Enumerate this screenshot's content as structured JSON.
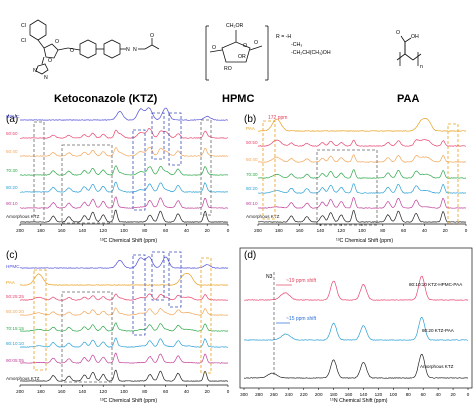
{
  "structures": [
    {
      "name": "Ketoconazole (KTZ)",
      "atoms": [
        "Cl",
        "Cl",
        "N",
        "N",
        "N",
        "O",
        "O",
        "O",
        "N",
        "O"
      ]
    },
    {
      "name": "HPMC",
      "atoms": [
        "CH₂OR",
        "O",
        "OR",
        "RO",
        "O",
        "O"
      ],
      "r_groups": [
        "R = -H",
        "-CH₃",
        "-CH₂CH(CH₃)OH"
      ]
    },
    {
      "name": "PAA",
      "atoms": [
        "O",
        "OH",
        "n"
      ]
    }
  ],
  "colors": {
    "hpmc": "#4f4fd8",
    "paa": "#e8a020",
    "r5050": "#e8456e",
    "r6040": "#f2a65a",
    "r7030": "#2ea84a",
    "r8020": "#2a9fd6",
    "r9010": "#c0409a",
    "amorphous": "#222222",
    "box_grey": "#666666",
    "box_blue": "#3b4fb8",
    "box_orange": "#e8a020",
    "ppm_red": "#e0455e"
  },
  "chart_data": [
    {
      "panel": "(a)",
      "type": "line",
      "xlabel": "¹³C Chemical Shift (ppm)",
      "xlim": [
        200,
        0
      ],
      "xticks": [
        200,
        180,
        160,
        140,
        120,
        100,
        80,
        60,
        40,
        20,
        0
      ],
      "series": [
        {
          "name": "HPMC",
          "color": "#4f4fd8"
        },
        {
          "name": "50:50",
          "color": "#e8456e"
        },
        {
          "name": "60:40",
          "color": "#f2a65a"
        },
        {
          "name": "70:30",
          "color": "#2ea84a"
        },
        {
          "name": "80:20",
          "color": "#2a9fd6"
        },
        {
          "name": "90:10",
          "color": "#c0409a"
        },
        {
          "name": "Amorphous KTZ",
          "color": "#222222"
        }
      ]
    },
    {
      "panel": "(b)",
      "type": "line",
      "xlabel": "¹³C Chemical Shift (ppm)",
      "xlim": [
        200,
        0
      ],
      "xticks": [
        200,
        180,
        160,
        140,
        120,
        100,
        80,
        60,
        40,
        20,
        0
      ],
      "annotation": "172 ppm",
      "series": [
        {
          "name": "PAA",
          "color": "#e8a020"
        },
        {
          "name": "50:50",
          "color": "#e8456e"
        },
        {
          "name": "60:40",
          "color": "#f2a65a"
        },
        {
          "name": "70:30",
          "color": "#2ea84a"
        },
        {
          "name": "80:20",
          "color": "#2a9fd6"
        },
        {
          "name": "90:10",
          "color": "#c0409a"
        },
        {
          "name": "Amorphous KTZ",
          "color": "#222222"
        }
      ]
    },
    {
      "panel": "(c)",
      "type": "line",
      "xlabel": "¹³C Chemical Shift (ppm)",
      "xlim": [
        200,
        0
      ],
      "xticks": [
        200,
        180,
        160,
        140,
        120,
        100,
        80,
        60,
        40,
        20,
        0
      ],
      "series": [
        {
          "name": "HPMC",
          "color": "#4f4fd8"
        },
        {
          "name": "PAA",
          "color": "#e8a020"
        },
        {
          "name": "50:25:25",
          "color": "#e8456e"
        },
        {
          "name": "60:20:20",
          "color": "#f2a65a"
        },
        {
          "name": "70:15:15",
          "color": "#2ea84a"
        },
        {
          "name": "80:10:10",
          "color": "#2a9fd6"
        },
        {
          "name": "90:05:05",
          "color": "#c0409a"
        },
        {
          "name": "Amorphous KTZ",
          "color": "#222222"
        }
      ]
    },
    {
      "panel": "(d)",
      "type": "line",
      "xlabel": "¹⁵N Chemical Shift (ppm)",
      "xlim": [
        300,
        0
      ],
      "xticks": [
        300,
        280,
        260,
        240,
        220,
        200,
        180,
        160,
        140,
        120,
        100,
        80,
        60,
        40,
        20,
        0
      ],
      "marker": "N3",
      "shifts": [
        "~19 ppm shift",
        "~15 ppm shift"
      ],
      "series": [
        {
          "name": "80:10:10 KTZ-HPMC-PAA",
          "color": "#e8456e"
        },
        {
          "name": "80:20 KTZ-PAA",
          "color": "#2a9fd6"
        },
        {
          "name": "Amorphous KTZ",
          "color": "#222222"
        }
      ]
    }
  ]
}
